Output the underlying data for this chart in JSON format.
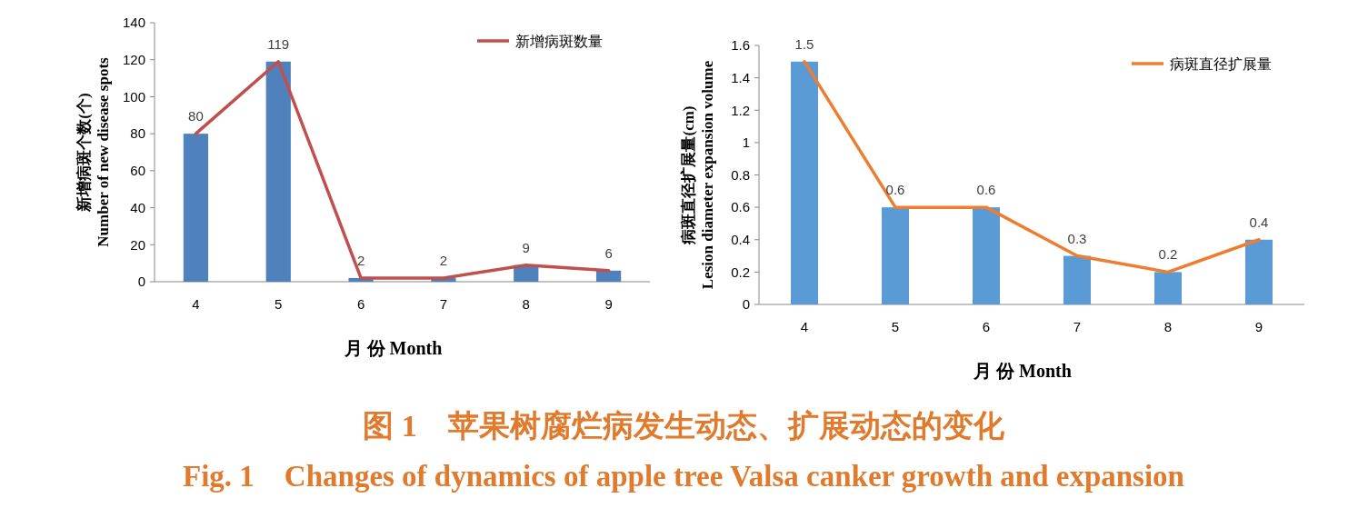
{
  "chart_data": [
    {
      "type": "bar",
      "categories": [
        "4",
        "5",
        "6",
        "7",
        "8",
        "9"
      ],
      "ylim": [
        0,
        140
      ],
      "yticks": [
        0,
        20,
        40,
        60,
        80,
        100,
        120,
        140
      ],
      "ylabel": "新增病斑个数(个)\nNumber of new disease spots",
      "xlabel": "月 份 Month",
      "legend": "top right",
      "series": [
        {
          "color": "#4f81bd",
          "values": [
            80,
            119,
            2,
            2,
            9,
            6
          ]
        },
        {
          "type": "line",
          "name": "新增病斑数量",
          "color": "#c0504d",
          "values": [
            80,
            119,
            2,
            2,
            9,
            6
          ],
          "value_labels": [
            "80",
            "119",
            "2",
            "2",
            "9",
            "6"
          ]
        }
      ],
      "annotations": [
        "图 1　苹果树腐烂病发生动态、扩展动态的变化",
        "Fig. 1　Changes of dynamics of apple tree Valsa canker growth and expansion"
      ]
    },
    {
      "type": "bar",
      "categories": [
        "4",
        "5",
        "6",
        "7",
        "8",
        "9"
      ],
      "ylim": [
        0,
        1.6
      ],
      "yticks": [
        0,
        0.2,
        0.4,
        0.6,
        0.8,
        1,
        1.2,
        1.4,
        1.6
      ],
      "ylabel": "病斑直径扩展量(cm)\nLesion diameter expansion volume",
      "xlabel": "月 份 Month",
      "legend": "top right",
      "series": [
        {
          "color": "#5b9bd5",
          "values": [
            1.5,
            0.6,
            0.6,
            0.3,
            0.2,
            0.4
          ]
        },
        {
          "type": "line",
          "name": "病斑直径扩展量",
          "color": "#ed7d31",
          "values": [
            1.5,
            0.6,
            0.6,
            0.3,
            0.2,
            0.4
          ],
          "value_labels": [
            "1.5",
            "0.6",
            "0.6",
            "0.3",
            "0.2",
            "0.4"
          ]
        }
      ]
    }
  ]
}
